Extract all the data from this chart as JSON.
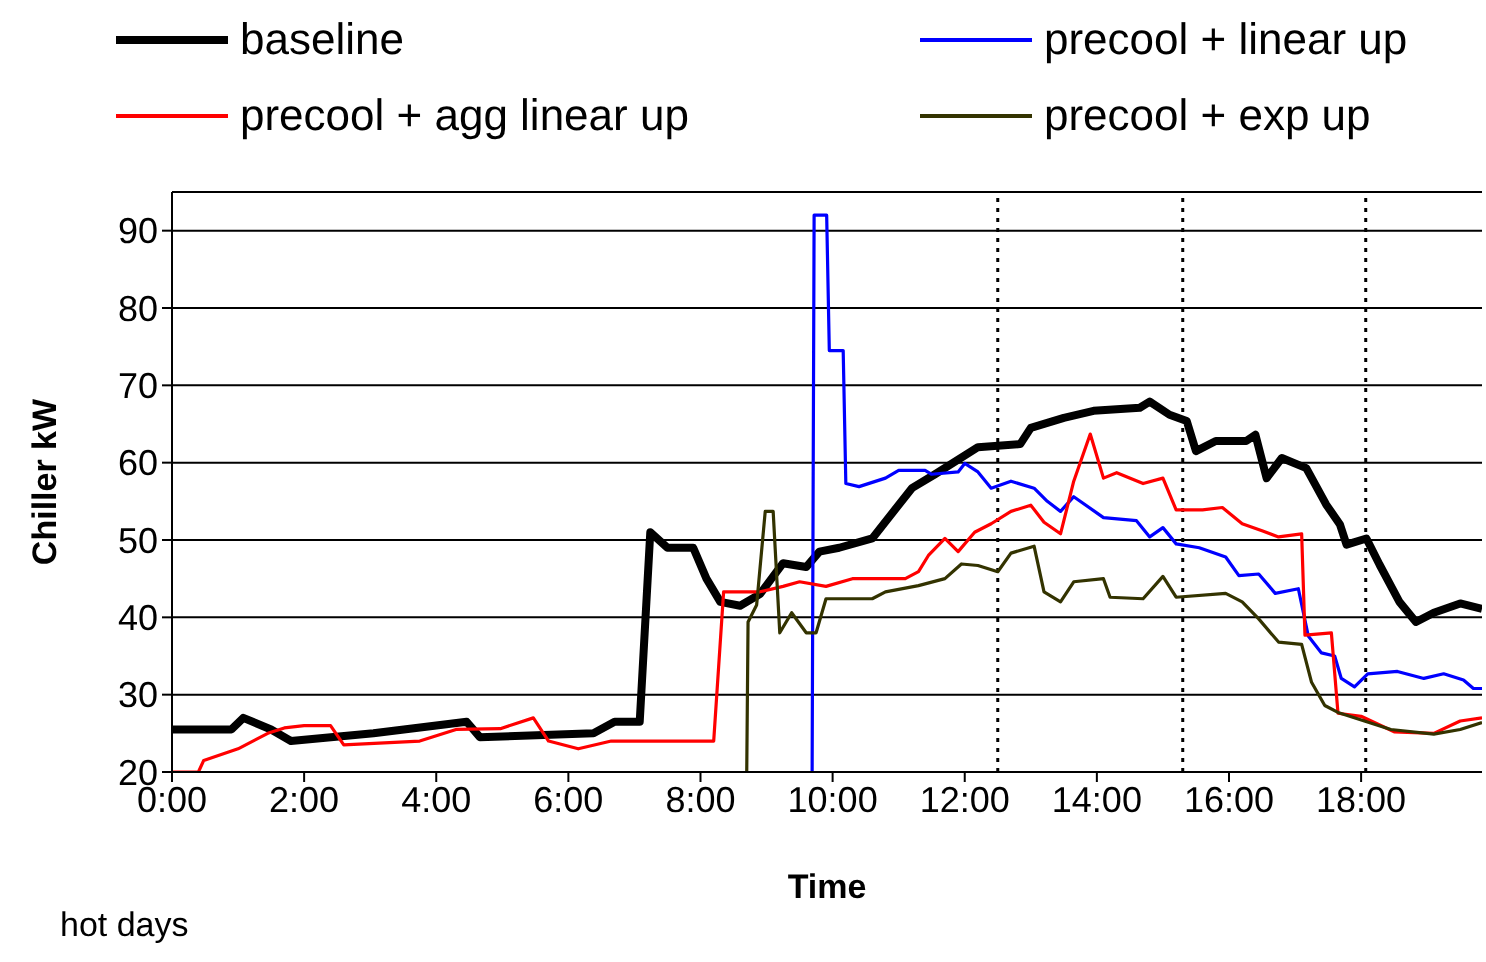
{
  "chart_data": {
    "type": "line",
    "xlabel": "Time",
    "ylabel": "Chiller kW",
    "annotations": [
      "hot days"
    ],
    "xlim": [
      0,
      19.83
    ],
    "xticks": [
      {
        "value": 0,
        "label": "0:00"
      },
      {
        "value": 2,
        "label": "2:00"
      },
      {
        "value": 4,
        "label": "4:00"
      },
      {
        "value": 6,
        "label": "6:00"
      },
      {
        "value": 8,
        "label": "8:00"
      },
      {
        "value": 10,
        "label": "10:00"
      },
      {
        "value": 12,
        "label": "12:00"
      },
      {
        "value": 14,
        "label": "14:00"
      },
      {
        "value": 16,
        "label": "16:00"
      },
      {
        "value": 18,
        "label": "18:00"
      }
    ],
    "ylim": [
      20,
      95
    ],
    "yticks": [
      20,
      30,
      40,
      50,
      60,
      70,
      80,
      90
    ],
    "grid": "y",
    "legend": "top",
    "marker": "none",
    "line_style": "solid",
    "ref_lines": [
      {
        "axis": "x",
        "value": 12.5,
        "color": "#000000",
        "line_style": "dotted"
      },
      {
        "axis": "x",
        "value": 15.3,
        "color": "#000000",
        "line_style": "dotted"
      },
      {
        "axis": "x",
        "value": 18.07,
        "color": "#000000",
        "line_style": "dotted"
      }
    ],
    "series": [
      {
        "name": "baseline",
        "color": "#000000",
        "x": [
          0,
          0.9,
          1.08,
          1.5,
          1.8,
          3.05,
          4.46,
          4.66,
          6.38,
          6.7,
          7.08,
          7.24,
          7.5,
          7.89,
          8.09,
          8.3,
          8.6,
          8.9,
          9.25,
          9.6,
          9.8,
          10.1,
          10.6,
          11.2,
          11.55,
          12.2,
          12.84,
          13.0,
          13.5,
          13.95,
          14.65,
          14.8,
          15.1,
          15.36,
          15.5,
          15.8,
          16.26,
          16.4,
          16.57,
          16.8,
          17.17,
          17.47,
          17.68,
          17.78,
          18.08,
          18.28,
          18.58,
          18.83,
          19.1,
          19.5,
          19.83
        ],
        "values": [
          25.5,
          25.5,
          27,
          25.5,
          24,
          25,
          26.5,
          24.5,
          25,
          26.5,
          26.5,
          51,
          49,
          49,
          45,
          42,
          41.5,
          43,
          47,
          46.5,
          48.5,
          49,
          50.2,
          56.7,
          58.5,
          62,
          62.4,
          64.5,
          65.8,
          66.7,
          67.1,
          67.9,
          66.2,
          65.4,
          61.5,
          62.8,
          62.8,
          63.6,
          58,
          60.6,
          59.3,
          54.6,
          52,
          49.4,
          50.2,
          46.8,
          42,
          39.4,
          40.6,
          41.8,
          41.1
        ]
      },
      {
        "name": "precool + linear up",
        "color": "#0000ff",
        "x": [
          9.69,
          9.72,
          9.91,
          9.95,
          10.16,
          10.2,
          10.4,
          10.8,
          11.0,
          11.4,
          11.5,
          11.9,
          12.0,
          12.2,
          12.4,
          12.7,
          13.05,
          13.25,
          13.45,
          13.65,
          14.1,
          14.6,
          14.8,
          15.0,
          15.2,
          15.55,
          15.95,
          16.15,
          16.45,
          16.7,
          17.05,
          17.2,
          17.4,
          17.6,
          17.7,
          17.9,
          18.1,
          18.55,
          18.95,
          19.25,
          19.55,
          19.7,
          19.83
        ],
        "values": [
          20,
          92,
          92,
          74.5,
          74.5,
          57.3,
          56.9,
          58,
          59,
          59,
          58.5,
          58.8,
          59.9,
          58.8,
          56.7,
          57.6,
          56.7,
          55,
          53.7,
          55.6,
          52.9,
          52.5,
          50.4,
          51.6,
          49.5,
          49,
          47.8,
          45.4,
          45.6,
          43.1,
          43.7,
          37.6,
          35.4,
          35,
          32.1,
          31,
          32.7,
          33,
          32.1,
          32.7,
          31.9,
          30.8,
          30.8
        ]
      },
      {
        "name": "precool + agg linear up",
        "color": "#ff0000",
        "x": [
          0,
          0.4,
          0.48,
          1.0,
          1.45,
          1.7,
          2.0,
          2.4,
          2.6,
          3.75,
          4.3,
          4.97,
          5.47,
          5.7,
          6.15,
          6.65,
          8.2,
          8.35,
          8.9,
          9.25,
          9.5,
          9.9,
          10.3,
          11.1,
          11.3,
          11.45,
          11.7,
          11.9,
          12.15,
          12.4,
          12.7,
          13.0,
          13.2,
          13.45,
          13.65,
          13.9,
          14.1,
          14.3,
          14.7,
          15.0,
          15.2,
          15.6,
          15.9,
          16.2,
          16.5,
          16.75,
          17.1,
          17.15,
          17.55,
          17.65,
          18.0,
          18.5,
          19.1,
          19.5,
          19.83
        ],
        "values": [
          20,
          20,
          21.5,
          23,
          25,
          25.7,
          26,
          26,
          23.5,
          24,
          25.5,
          25.6,
          27,
          24,
          23,
          24,
          24,
          43.3,
          43.3,
          44,
          44.6,
          44,
          45,
          45,
          45.9,
          48,
          50.2,
          48.5,
          51,
          52.1,
          53.7,
          54.5,
          52.3,
          50.8,
          57.6,
          63.7,
          58,
          58.7,
          57.3,
          58,
          53.9,
          53.9,
          54.2,
          52.1,
          51.2,
          50.4,
          50.8,
          37.7,
          38,
          27.6,
          27.2,
          25.2,
          25,
          26.6,
          27
        ]
      },
      {
        "name": "precool + exp up",
        "color": "#333300",
        "x": [
          8.7,
          8.72,
          8.85,
          8.98,
          9.1,
          9.2,
          9.38,
          9.6,
          9.75,
          9.9,
          10.6,
          10.8,
          11.3,
          11.7,
          11.95,
          12.2,
          12.5,
          12.7,
          13.05,
          13.2,
          13.45,
          13.65,
          14.1,
          14.2,
          14.7,
          15.0,
          15.2,
          15.95,
          16.2,
          16.45,
          16.75,
          17.1,
          17.25,
          17.45,
          17.65,
          18.05,
          18.45,
          19.1,
          19.5,
          19.83
        ],
        "values": [
          20,
          39.4,
          41.6,
          53.7,
          53.7,
          38,
          40.6,
          38,
          38,
          42.4,
          42.4,
          43.3,
          44.1,
          45,
          46.9,
          46.7,
          45.9,
          48.3,
          49.2,
          43.3,
          42,
          44.6,
          45,
          42.6,
          42.4,
          45.3,
          42.6,
          43.1,
          42,
          39.8,
          36.8,
          36.5,
          31.6,
          28.6,
          27.7,
          26.6,
          25.5,
          24.9,
          25.5,
          26.4
        ]
      }
    ]
  }
}
